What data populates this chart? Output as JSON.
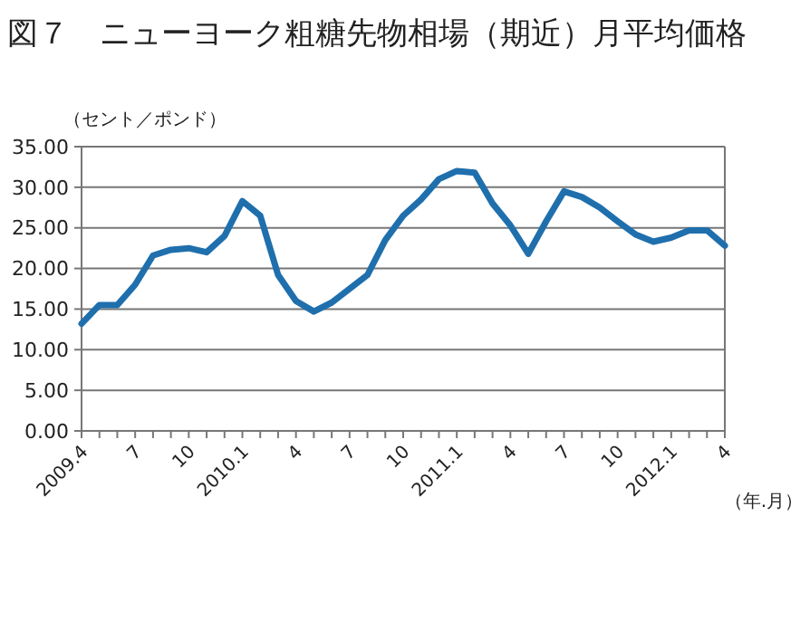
{
  "chart_data": {
    "type": "line",
    "title": "図７　ニューヨーク粗糖先物相場（期近）月平均価格",
    "ylabel": "（セント／ポンド）",
    "xlabel": "（年.月）",
    "categories": [
      "2009.4",
      null,
      null,
      "7",
      null,
      null,
      "10",
      null,
      null,
      "2010.1",
      null,
      null,
      "4",
      null,
      null,
      "7",
      null,
      null,
      "10",
      null,
      null,
      "2011.1",
      null,
      null,
      "4",
      null,
      null,
      "7",
      null,
      null,
      "10",
      null,
      null,
      "2012.1",
      null,
      null,
      "4"
    ],
    "series": [
      {
        "color": "#1f6fad",
        "values": [
          13.2,
          15.5,
          15.5,
          18,
          21.6,
          22.3,
          22.5,
          22,
          24,
          28.3,
          26.5,
          19.2,
          16,
          14.7,
          15.8,
          17.5,
          19.2,
          23.5,
          26.5,
          28.5,
          31,
          32,
          31.8,
          28,
          25.3,
          21.8,
          25.8,
          29.5,
          28.8,
          27.5,
          25.8,
          24.2,
          23.3,
          23.8,
          24.7,
          24.7,
          22.8
        ]
      }
    ],
    "ylim": [
      0,
      35
    ],
    "yticks": [
      {
        "value": 0,
        "label": "0.00"
      },
      {
        "value": 5,
        "label": "5.00"
      },
      {
        "value": 10,
        "label": "10.00"
      },
      {
        "value": 15,
        "label": "15.00"
      },
      {
        "value": 20,
        "label": "20.00"
      },
      {
        "value": 25,
        "label": "25.00"
      },
      {
        "value": 30,
        "label": "30.00"
      },
      {
        "value": 35,
        "label": "35.00"
      }
    ],
    "grid": "y",
    "marker": "none",
    "line_style": "solid"
  }
}
